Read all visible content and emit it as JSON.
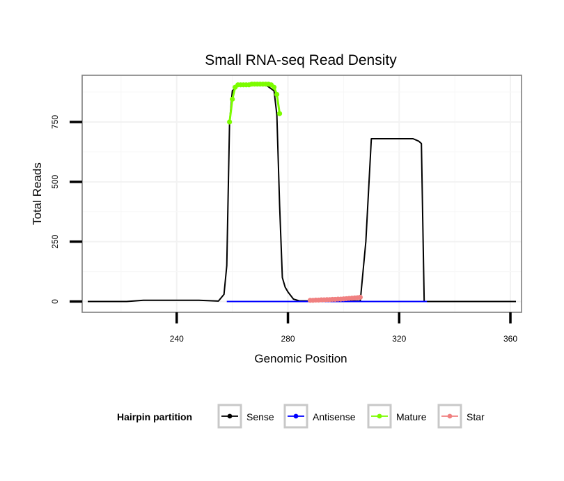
{
  "chart_data": {
    "type": "line",
    "title": "Small RNA-seq Read Density",
    "xlabel": "Genomic Position",
    "ylabel": "Total Reads",
    "xlim": [
      206,
      364
    ],
    "ylim": [
      -45,
      945
    ],
    "x_ticks": [
      240,
      280,
      320,
      360
    ],
    "y_ticks": [
      0,
      250,
      500,
      750
    ],
    "grid": true,
    "legend": {
      "title": "Hairpin partition",
      "position": "bottom",
      "entries": [
        {
          "label": "Sense",
          "color": "#000000"
        },
        {
          "label": "Antisense",
          "color": "#0000FF"
        },
        {
          "label": "Mature",
          "color": "#7CFC00"
        },
        {
          "label": "Star",
          "color": "#F08080"
        }
      ]
    },
    "series": [
      {
        "name": "Sense",
        "color": "#000000",
        "mode": "line",
        "x": [
          208,
          222,
          228,
          248,
          255,
          257,
          258,
          259,
          260,
          262,
          265,
          268,
          270,
          272,
          275,
          276,
          277,
          278,
          279,
          280,
          282,
          284,
          290,
          300,
          306,
          308,
          310,
          315,
          320,
          325,
          327,
          328,
          329,
          340,
          350,
          362
        ],
        "y": [
          0,
          0,
          5,
          5,
          2,
          30,
          150,
          750,
          880,
          900,
          905,
          905,
          905,
          905,
          880,
          780,
          400,
          100,
          60,
          40,
          10,
          3,
          2,
          2,
          2,
          250,
          680,
          680,
          680,
          680,
          670,
          660,
          0,
          0,
          0,
          0
        ]
      },
      {
        "name": "Antisense",
        "color": "#0000FF",
        "mode": "line",
        "x": [
          258,
          330
        ],
        "y": [
          0,
          0
        ]
      },
      {
        "name": "Mature",
        "color": "#7CFC00",
        "mode": "line+points",
        "x": [
          259,
          260,
          261,
          262,
          263,
          264,
          265,
          266,
          267,
          268,
          269,
          270,
          271,
          272,
          273,
          274,
          275,
          276,
          277
        ],
        "y": [
          750,
          845,
          895,
          905,
          905,
          905,
          905,
          905,
          908,
          908,
          908,
          908,
          908,
          908,
          908,
          905,
          895,
          865,
          785
        ]
      },
      {
        "name": "Star",
        "color": "#F08080",
        "mode": "line+points",
        "x": [
          288,
          289,
          290,
          291,
          292,
          293,
          294,
          295,
          296,
          297,
          298,
          299,
          300,
          301,
          302,
          303,
          304,
          305,
          306
        ],
        "y": [
          5,
          5,
          6,
          6,
          7,
          7,
          8,
          8,
          9,
          9,
          10,
          10,
          11,
          12,
          13,
          14,
          15,
          16,
          18
        ]
      }
    ]
  }
}
